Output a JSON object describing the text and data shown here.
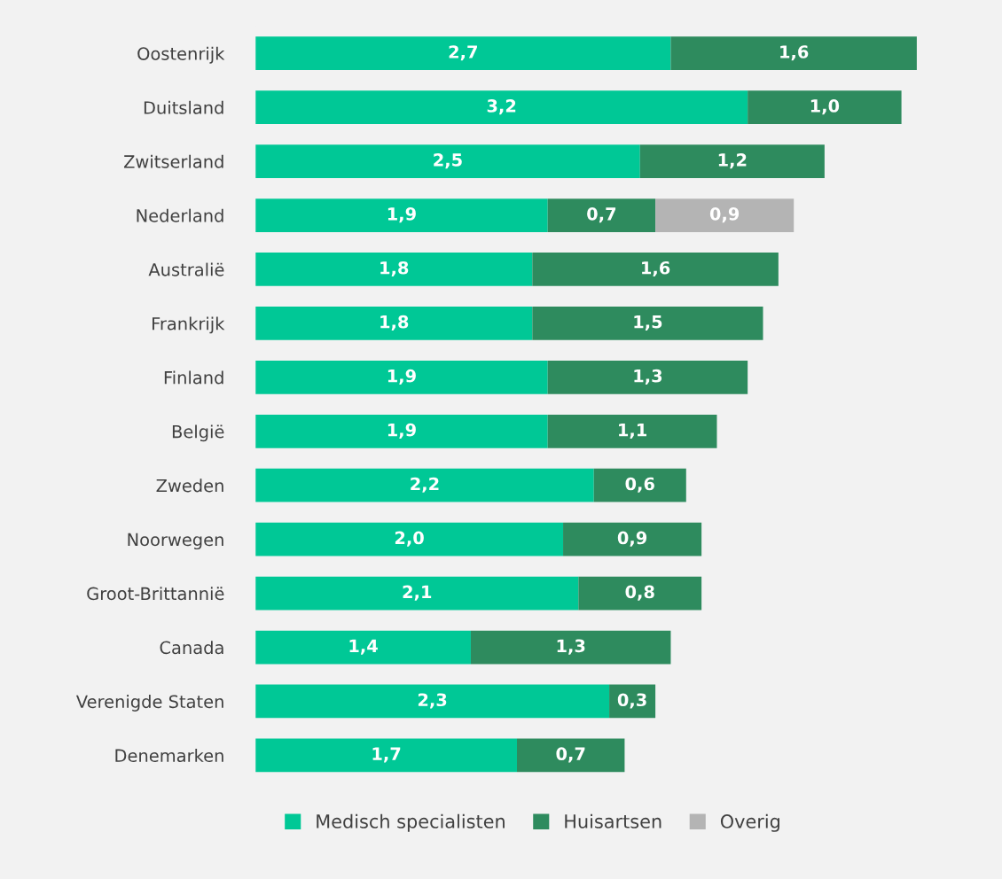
{
  "chart_data": {
    "type": "bar",
    "orientation": "horizontal",
    "stacked": true,
    "legend": "bottom",
    "grid": false,
    "tick_labels": "y",
    "categories": [
      "Oostenrijk",
      "Duitsland",
      "Zwitserland",
      "Nederland",
      "Australië",
      "Frankrijk",
      "Finland",
      "België",
      "Zweden",
      "Noorwegen",
      "Groot-Brittannië",
      "Canada",
      "Verenigde Staten",
      "Denemarken"
    ],
    "series": [
      {
        "name": "Medisch specialisten",
        "color": "#00c896",
        "values": [
          2.7,
          3.2,
          2.5,
          1.9,
          1.8,
          1.8,
          1.9,
          1.9,
          2.2,
          2.0,
          2.1,
          1.4,
          2.3,
          1.7
        ],
        "value_labels": [
          "2,7",
          "3,2",
          "2,5",
          "1,9",
          "1,8",
          "1,8",
          "1,9",
          "1,9",
          "2,2",
          "2,0",
          "2,1",
          "1,4",
          "2,3",
          "1,7"
        ]
      },
      {
        "name": "Huisartsen",
        "color": "#2e8b5e",
        "values": [
          1.6,
          1.0,
          1.2,
          0.7,
          1.6,
          1.5,
          1.3,
          1.1,
          0.6,
          0.9,
          0.8,
          1.3,
          0.3,
          0.7
        ],
        "value_labels": [
          "1,6",
          "1,0",
          "1,2",
          "0,7",
          "1,6",
          "1,5",
          "1,3",
          "1,1",
          "0,6",
          "0,9",
          "0,8",
          "1,3",
          "0,3",
          "0,7"
        ]
      },
      {
        "name": "Overig",
        "color": "#b4b4b4",
        "values": [
          null,
          null,
          null,
          0.9,
          null,
          null,
          null,
          null,
          null,
          null,
          null,
          null,
          null,
          null
        ],
        "value_labels": [
          null,
          null,
          null,
          "0,9",
          null,
          null,
          null,
          null,
          null,
          null,
          null,
          null,
          null,
          null
        ]
      }
    ]
  }
}
